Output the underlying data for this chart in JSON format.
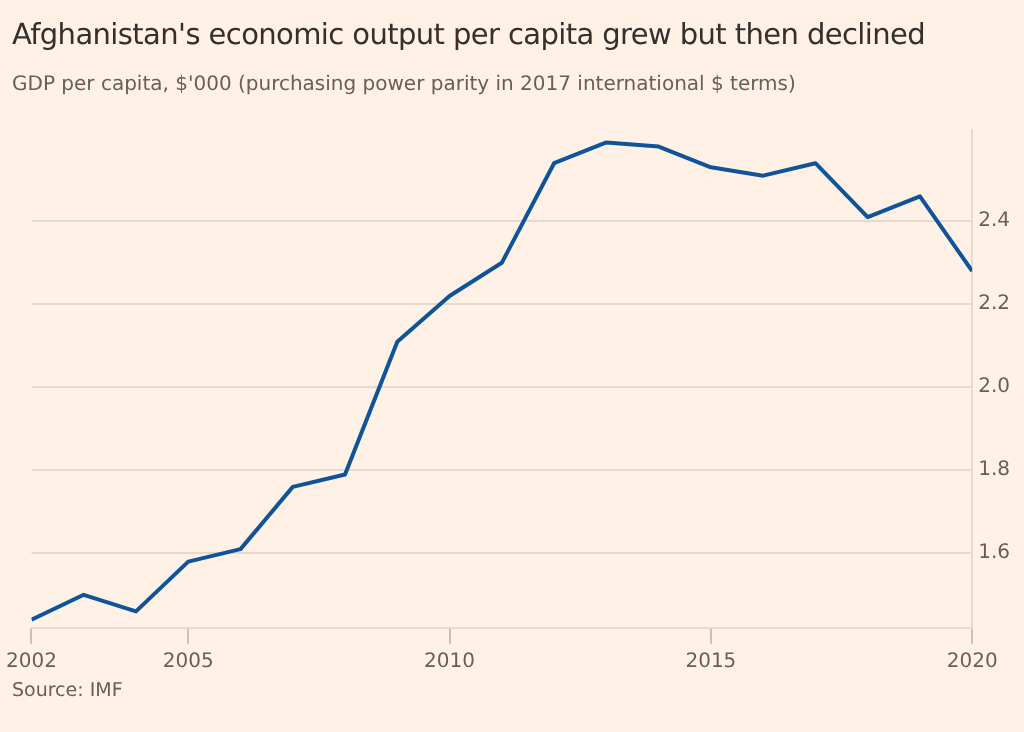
{
  "chart_data": {
    "type": "line",
    "title": "Afghanistan's economic output per capita grew but then declined",
    "subtitle": "GDP per capita, $'000 (purchasing power parity in 2017 international $ terms)",
    "x": [
      2002,
      2003,
      2004,
      2005,
      2006,
      2007,
      2008,
      2009,
      2010,
      2011,
      2012,
      2013,
      2014,
      2015,
      2016,
      2017,
      2018,
      2019,
      2020
    ],
    "series": [
      {
        "color": "#0f5499",
        "values": [
          1.44,
          1.5,
          1.46,
          1.58,
          1.61,
          1.76,
          1.79,
          2.11,
          2.22,
          2.3,
          2.54,
          2.59,
          2.58,
          2.53,
          2.51,
          2.54,
          2.41,
          2.46,
          2.28
        ]
      }
    ],
    "xlim": [
      2002,
      2020
    ],
    "xticks": [
      2002,
      2005,
      2010,
      2015,
      2020
    ],
    "ylim": [
      1.42,
      2.62
    ],
    "yticks": [
      1.6,
      1.8,
      {
        "value": 2,
        "label": "2.0"
      },
      2.2,
      2.4
    ],
    "grid": "y",
    "legend": false,
    "marker": "none",
    "line_style": "solid",
    "annotations": [
      "Source: IMF"
    ]
  }
}
